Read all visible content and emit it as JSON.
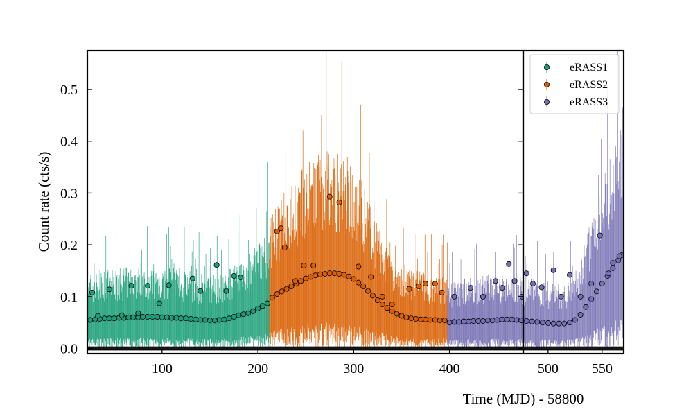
{
  "chart_data": {
    "type": "scatter",
    "ylabel": "Count rate (cts/s)",
    "xlabel": "Time (MJD) - 58800",
    "ylim": [
      -0.01,
      0.575
    ],
    "panels": [
      {
        "xlim": [
          22,
          477
        ],
        "xticks": [
          100,
          200,
          300,
          400
        ]
      },
      {
        "xlim": [
          477,
          570
        ],
        "xticks": [
          500,
          550
        ]
      }
    ],
    "yticks": [
      0.0,
      0.1,
      0.2,
      0.3,
      0.4,
      0.5
    ],
    "grid": false,
    "legend_position": "top-right",
    "series": [
      {
        "name": "eRASS1",
        "color": "#1b9e77",
        "mjd_range": [
          22,
          212
        ],
        "x": [
          25,
          30,
          35,
          40,
          45,
          50,
          55,
          60,
          65,
          70,
          75,
          80,
          85,
          90,
          95,
          100,
          105,
          110,
          115,
          120,
          125,
          130,
          135,
          140,
          145,
          150,
          155,
          160,
          165,
          170,
          175,
          180,
          185,
          190,
          195,
          200,
          205,
          210
        ],
        "y": [
          0.055,
          0.056,
          0.057,
          0.058,
          0.058,
          0.058,
          0.059,
          0.059,
          0.06,
          0.06,
          0.06,
          0.061,
          0.061,
          0.061,
          0.061,
          0.06,
          0.06,
          0.059,
          0.059,
          0.058,
          0.058,
          0.057,
          0.056,
          0.055,
          0.055,
          0.054,
          0.054,
          0.055,
          0.056,
          0.058,
          0.061,
          0.064,
          0.066,
          0.068,
          0.072,
          0.077,
          0.082,
          0.087
        ],
        "outliers_x": [
          27,
          33,
          45,
          58,
          68,
          75,
          85,
          97,
          107,
          132,
          140,
          157,
          167,
          175,
          182
        ],
        "outliers_y": [
          0.108,
          0.063,
          0.114,
          0.064,
          0.121,
          0.068,
          0.121,
          0.087,
          0.122,
          0.135,
          0.111,
          0.161,
          0.111,
          0.14,
          0.137
        ]
      },
      {
        "name": "eRASS2",
        "color": "#d95f02",
        "mjd_range": [
          212,
          398
        ],
        "x": [
          215,
          220,
          225,
          230,
          235,
          240,
          245,
          250,
          255,
          260,
          265,
          270,
          275,
          280,
          285,
          290,
          295,
          300,
          305,
          310,
          315,
          320,
          325,
          330,
          335,
          340,
          345,
          350,
          355,
          360,
          365,
          370,
          375,
          380,
          385,
          390,
          395
        ],
        "y": [
          0.098,
          0.105,
          0.11,
          0.115,
          0.12,
          0.125,
          0.13,
          0.135,
          0.138,
          0.141,
          0.143,
          0.144,
          0.145,
          0.145,
          0.144,
          0.142,
          0.139,
          0.134,
          0.127,
          0.12,
          0.111,
          0.102,
          0.093,
          0.085,
          0.078,
          0.072,
          0.067,
          0.063,
          0.06,
          0.058,
          0.057,
          0.056,
          0.056,
          0.055,
          0.055,
          0.054,
          0.054
        ],
        "outliers_x": [
          220,
          224,
          228,
          239,
          248,
          258,
          275,
          285,
          305,
          318,
          330,
          340,
          358,
          368,
          375,
          385,
          392
        ],
        "outliers_y": [
          0.226,
          0.232,
          0.195,
          0.13,
          0.16,
          0.16,
          0.293,
          0.282,
          0.158,
          0.138,
          0.1,
          0.085,
          0.115,
          0.12,
          0.125,
          0.125,
          0.108
        ]
      },
      {
        "name": "eRASS3",
        "color": "#7570b3",
        "mjd_range": [
          398,
          570
        ],
        "x": [
          400,
          405,
          410,
          415,
          420,
          425,
          430,
          435,
          440,
          445,
          450,
          455,
          460,
          465,
          470,
          475,
          480,
          485,
          490,
          495,
          500,
          505,
          510,
          515,
          520,
          525,
          530,
          535,
          540,
          545,
          550,
          555,
          560,
          565,
          568
        ],
        "y": [
          0.05,
          0.051,
          0.051,
          0.052,
          0.052,
          0.053,
          0.053,
          0.053,
          0.054,
          0.054,
          0.055,
          0.056,
          0.056,
          0.056,
          0.055,
          0.054,
          0.053,
          0.052,
          0.051,
          0.05,
          0.049,
          0.048,
          0.048,
          0.048,
          0.05,
          0.055,
          0.065,
          0.08,
          0.095,
          0.11,
          0.125,
          0.14,
          0.155,
          0.17,
          0.18
        ],
        "outliers_x": [
          405,
          422,
          435,
          448,
          455,
          462,
          468,
          476,
          480,
          486,
          494,
          505,
          512,
          520,
          530,
          540,
          548,
          556,
          560,
          566
        ],
        "outliers_y": [
          0.1,
          0.117,
          0.1,
          0.13,
          0.117,
          0.163,
          0.13,
          0.1,
          0.145,
          0.125,
          0.118,
          0.151,
          0.1,
          0.142,
          0.1,
          0.125,
          0.218,
          0.145,
          0.165,
          0.178
        ]
      }
    ]
  }
}
